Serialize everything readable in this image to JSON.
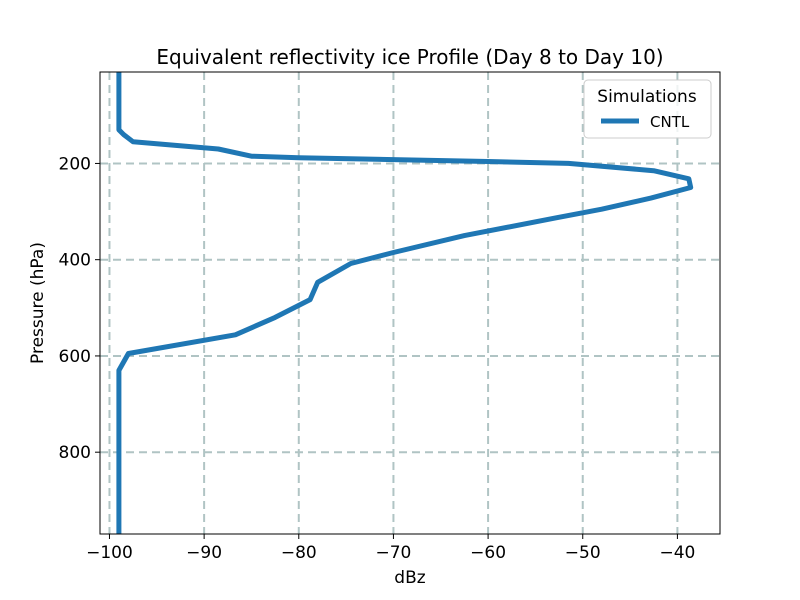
{
  "chart_data": {
    "type": "line",
    "title": "Equivalent reflectivity ice Profile (Day 8 to Day 10)",
    "xlabel": "dBz",
    "ylabel": "Pressure (hPa)",
    "xlim": [
      -101,
      -35.5
    ],
    "ylim": [
      970,
      10
    ],
    "y_inverted": true,
    "grid": true,
    "legend": {
      "title": "Simulations",
      "placement": "top-right"
    },
    "x_ticks": [
      -100,
      -90,
      -80,
      -70,
      -60,
      -50,
      -40
    ],
    "x_tick_labels": [
      "−100",
      "−90",
      "−80",
      "−70",
      "−60",
      "−50",
      "−40"
    ],
    "y_ticks": [
      200,
      400,
      600,
      800
    ],
    "y_tick_labels": [
      "200",
      "400",
      "600",
      "800"
    ],
    "series": [
      {
        "name": "CNTL",
        "color": "#1f77b4",
        "points": [
          [
            -99,
            10
          ],
          [
            -99,
            130
          ],
          [
            -98.5,
            140
          ],
          [
            -97.5,
            155
          ],
          [
            -88.5,
            170
          ],
          [
            -85,
            185
          ],
          [
            -80,
            188
          ],
          [
            -70,
            192
          ],
          [
            -60,
            196
          ],
          [
            -51.5,
            200
          ],
          [
            -42.5,
            215
          ],
          [
            -38.8,
            232
          ],
          [
            -38.6,
            250
          ],
          [
            -42.8,
            272
          ],
          [
            -48,
            295
          ],
          [
            -52.8,
            313
          ],
          [
            -62.5,
            350
          ],
          [
            -70,
            385
          ],
          [
            -74.5,
            408
          ],
          [
            -78,
            447
          ],
          [
            -78.8,
            483
          ],
          [
            -82.5,
            520
          ],
          [
            -86.7,
            556
          ],
          [
            -98,
            595
          ],
          [
            -99,
            630
          ],
          [
            -99,
            970
          ]
        ]
      }
    ]
  }
}
